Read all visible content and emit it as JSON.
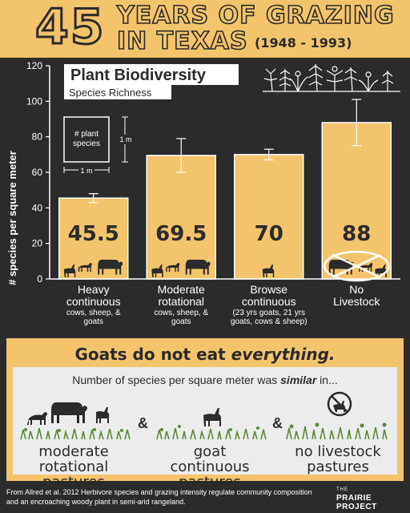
{
  "header": {
    "number": "45",
    "title_line1": "YEARS OF GRAZING",
    "title_line2": "IN TEXAS",
    "years": "(1948 - 1993)"
  },
  "colors": {
    "background": "#2b2b2b",
    "accent": "#f3c46b",
    "bar": "#f3c46b",
    "bar_outline": "#ffffff",
    "panel": "#ececec"
  },
  "chart_data": {
    "type": "bar",
    "title": "Plant Biodiversity",
    "subtitle": "Species Richness",
    "ylabel": "# species per square meter",
    "ylim": [
      0,
      120
    ],
    "yticks": [
      0,
      20,
      40,
      60,
      80,
      100,
      120
    ],
    "grid": false,
    "categories": [
      {
        "name": "Heavy\ncontinuous",
        "detail": "cows, sheep, &\ngoats"
      },
      {
        "name": "Moderate\nrotational",
        "detail": "cows, sheep, &\ngoats"
      },
      {
        "name": "Browse\ncontinuous",
        "detail": "(23 yrs goats, 21 yrs\ngoats, cows & sheep)"
      },
      {
        "name": "No\nLivestock",
        "detail": ""
      }
    ],
    "values": [
      45.5,
      69.5,
      70,
      88
    ],
    "value_labels": [
      "45.5",
      "69.5",
      "70",
      "88"
    ],
    "error_bars": [
      [
        43,
        48
      ],
      [
        60,
        79
      ],
      [
        67,
        73
      ],
      [
        75,
        101
      ]
    ],
    "key": {
      "box_label": "# plant\nspecies",
      "width_label": "1 m",
      "height_label": "1 m"
    },
    "icons": [
      "goat-icon",
      "sheep-icon",
      "cow-icon",
      "crossed-out-livestock-icon"
    ]
  },
  "banner": {
    "title_plain": "Goats do not eat ",
    "title_emph": "everything.",
    "similar_prefix": "Number of species per square meter was ",
    "similar_emph": "similar",
    "similar_suffix": " in...",
    "items": [
      "moderate\nrotational\npastures",
      "goat\ncontinuous\npastures",
      "no livestock\npastures"
    ],
    "amp": "&"
  },
  "footer": {
    "citation": "From Allred et al. 2012 Herbivore species and grazing intensity regulate community composition and an encroaching woody plant in semi-arid rangeland."
  },
  "logo": {
    "small": "THE",
    "main": "PRAIRIE PROJECT"
  }
}
